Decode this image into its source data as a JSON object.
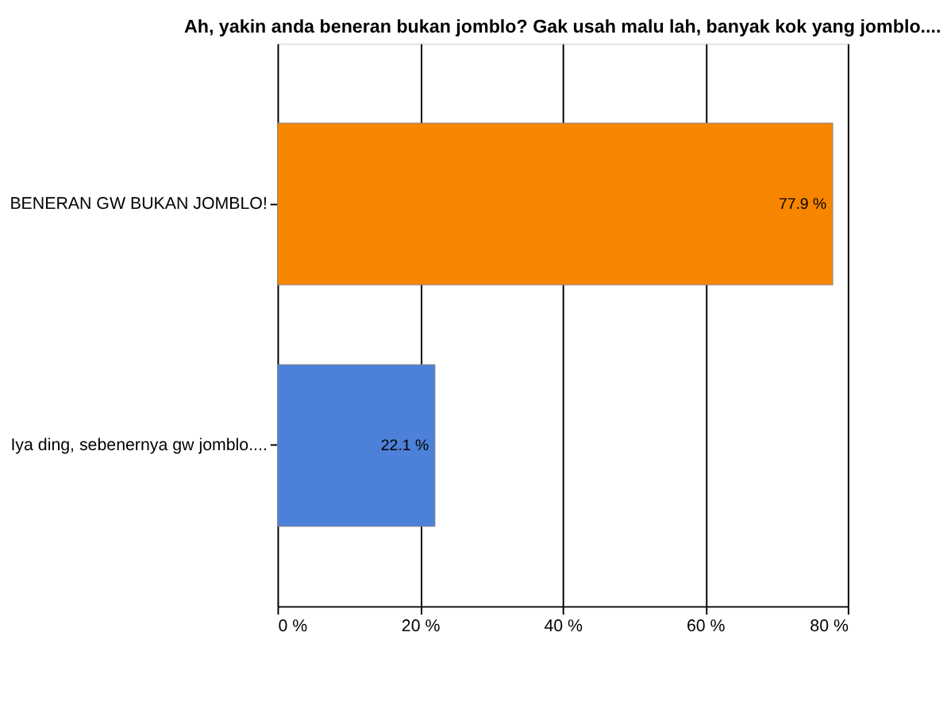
{
  "chart_data": {
    "type": "bar",
    "orientation": "horizontal",
    "title": "Ah, yakin anda beneran bukan jomblo? Gak usah malu lah, banyak kok yang jomblo....",
    "categories": [
      "BENERAN GW BUKAN JOMBLO!",
      "Iya ding, sebenernya gw jomblo...."
    ],
    "values": [
      77.9,
      22.1
    ],
    "colors": [
      "#f78500",
      "#4d80d8"
    ],
    "value_labels": [
      "77.9 %",
      "22.1 %"
    ],
    "xlim": [
      0,
      80
    ],
    "xticks": [
      {
        "value": 0,
        "label": "0 %"
      },
      {
        "value": 20,
        "label": "20 %"
      },
      {
        "value": 40,
        "label": "40 %"
      },
      {
        "value": 60,
        "label": "60 %"
      },
      {
        "value": 80,
        "label": "80 %"
      }
    ],
    "grid": "x"
  }
}
